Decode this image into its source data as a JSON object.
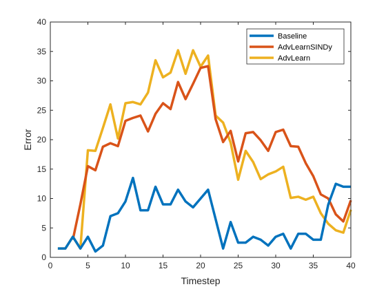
{
  "chart_data": {
    "type": "line",
    "title": "",
    "xlabel": "Timestep",
    "ylabel": "Error",
    "xlim": [
      0,
      40
    ],
    "ylim": [
      0,
      40
    ],
    "xticks": [
      0,
      5,
      10,
      15,
      20,
      25,
      30,
      35,
      40
    ],
    "yticks": [
      0,
      5,
      10,
      15,
      20,
      25,
      30,
      35,
      40
    ],
    "grid": false,
    "legend_position": "top-right",
    "series": [
      {
        "name": "Baseline",
        "color": "#0072BD",
        "x": [
          1,
          2,
          3,
          4,
          5,
          6,
          7,
          8,
          9,
          10,
          11,
          12,
          13,
          14,
          15,
          16,
          17,
          18,
          19,
          20,
          21,
          22,
          23,
          24,
          25,
          26,
          27,
          28,
          29,
          30,
          31,
          32,
          33,
          34,
          35,
          36,
          37,
          38,
          39,
          40
        ],
        "values": [
          1.5,
          1.5,
          3.5,
          1.5,
          3.5,
          1,
          2,
          7,
          7.5,
          9.5,
          13.5,
          8,
          8,
          12,
          9,
          9,
          11.5,
          9.5,
          8.5,
          10,
          11.5,
          6.5,
          1.5,
          6,
          2.5,
          2.5,
          3.5,
          3,
          2,
          3.5,
          4,
          1.5,
          4,
          4,
          3,
          3,
          9,
          12.5,
          12,
          12
        ]
      },
      {
        "name": "AdvLearnSINDy",
        "color": "#D95319",
        "x": [
          3,
          4,
          5,
          6,
          7,
          8,
          9,
          10,
          11,
          12,
          13,
          14,
          15,
          16,
          17,
          18,
          19,
          20,
          21,
          22,
          23,
          24,
          25,
          26,
          27,
          28,
          29,
          30,
          31,
          32,
          33,
          34,
          35,
          36,
          37,
          38,
          39,
          40
        ],
        "values": [
          3,
          9,
          15.5,
          14.8,
          18.8,
          19.4,
          18.9,
          23.2,
          23.7,
          24.1,
          21.4,
          24.4,
          26.2,
          25.2,
          29.8,
          26.9,
          29.5,
          32.2,
          32.5,
          23.5,
          19.6,
          21.5,
          16.3,
          21.1,
          21.3,
          19.9,
          18.1,
          21.3,
          21.7,
          18.9,
          18.8,
          16,
          13.8,
          10.7,
          10,
          7.3,
          6.1,
          9.7
        ]
      },
      {
        "name": "AdvLearn",
        "color": "#EDB120",
        "x": [
          1,
          2,
          3,
          4,
          5,
          6,
          7,
          8,
          9,
          10,
          11,
          12,
          13,
          14,
          15,
          16,
          17,
          18,
          19,
          20,
          21,
          22,
          23,
          24,
          25,
          26,
          27,
          28,
          29,
          30,
          31,
          32,
          33,
          34,
          35,
          36,
          37,
          38,
          39,
          40
        ],
        "values": [
          1.5,
          1.5,
          3.5,
          1.5,
          18.2,
          18.1,
          22,
          26,
          20.2,
          26.2,
          26.4,
          26,
          28,
          33.5,
          30.6,
          31.4,
          35.2,
          31.2,
          35.2,
          32.4,
          34.3,
          24.1,
          22.9,
          19.5,
          13.2,
          18.1,
          16.2,
          13.3,
          14.1,
          14.6,
          15.4,
          10.1,
          10.3,
          9.8,
          10.3,
          7.5,
          5.7,
          4.6,
          4.2,
          8.1
        ]
      }
    ]
  }
}
